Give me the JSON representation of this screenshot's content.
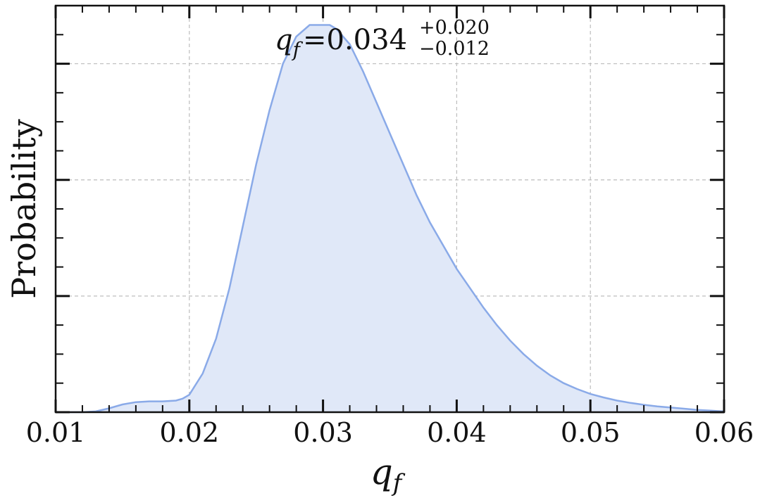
{
  "chart_data": {
    "type": "area",
    "title": "",
    "xlabel": "q",
    "xlabel_sub": "f",
    "ylabel": "Probability",
    "xlim": [
      0.01,
      0.06
    ],
    "ylim": [
      0,
      1.05
    ],
    "x_major_ticks": [
      0.01,
      0.02,
      0.03,
      0.04,
      0.05,
      0.06
    ],
    "x_tick_labels": [
      "0.01",
      "0.02",
      "0.03",
      "0.04",
      "0.05",
      "0.06"
    ],
    "grid": true,
    "y_tick_labels_shown": false,
    "annotation": {
      "variable": "q",
      "subscript": "f",
      "equals": "=",
      "value": "0.034",
      "upper": "+0.020",
      "lower": "−0.012"
    },
    "series": [
      {
        "color": "#8aaae8",
        "fill": "#e0e8f8",
        "x": [
          0.01,
          0.012,
          0.013,
          0.014,
          0.015,
          0.016,
          0.017,
          0.018,
          0.019,
          0.0195,
          0.02,
          0.021,
          0.022,
          0.023,
          0.024,
          0.025,
          0.026,
          0.027,
          0.028,
          0.029,
          0.03,
          0.0305,
          0.031,
          0.032,
          0.033,
          0.034,
          0.035,
          0.036,
          0.037,
          0.038,
          0.039,
          0.04,
          0.041,
          0.042,
          0.043,
          0.044,
          0.045,
          0.046,
          0.047,
          0.048,
          0.049,
          0.05,
          0.051,
          0.052,
          0.053,
          0.054,
          0.055,
          0.056,
          0.057,
          0.058,
          0.059,
          0.06
        ],
        "y": [
          0.0,
          0.0,
          0.002,
          0.01,
          0.02,
          0.026,
          0.028,
          0.028,
          0.03,
          0.035,
          0.045,
          0.1,
          0.19,
          0.32,
          0.48,
          0.64,
          0.78,
          0.9,
          0.97,
          1.0,
          1.0,
          1.0,
          0.99,
          0.95,
          0.88,
          0.8,
          0.72,
          0.64,
          0.56,
          0.49,
          0.43,
          0.37,
          0.32,
          0.27,
          0.225,
          0.185,
          0.15,
          0.12,
          0.095,
          0.075,
          0.06,
          0.047,
          0.038,
          0.03,
          0.024,
          0.019,
          0.015,
          0.012,
          0.009,
          0.006,
          0.004,
          0.002
        ]
      }
    ]
  }
}
